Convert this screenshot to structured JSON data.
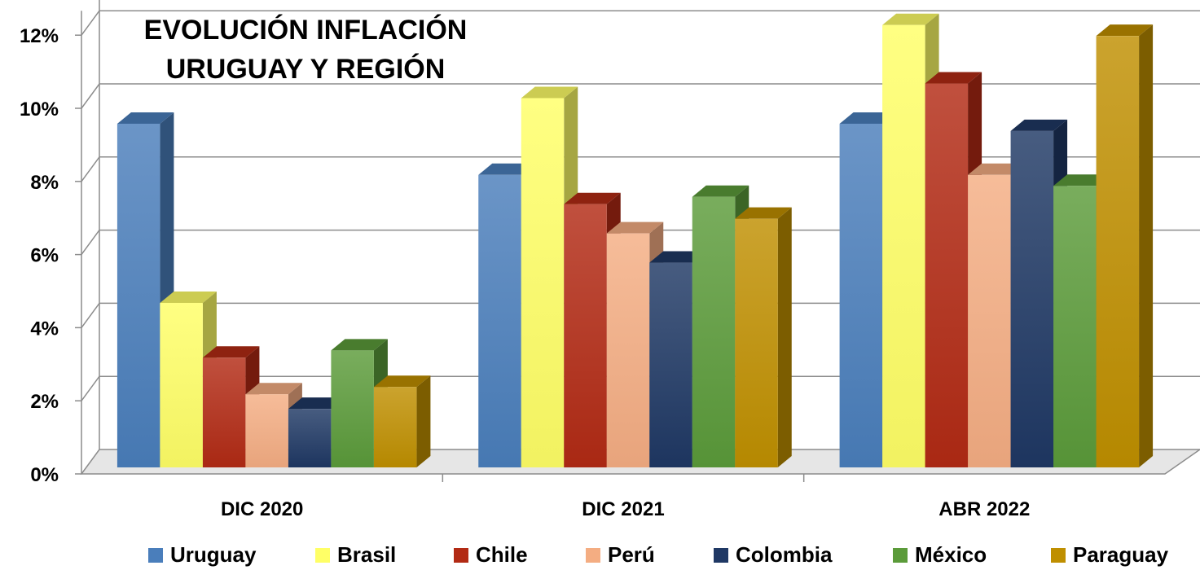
{
  "chart_data": {
    "type": "bar",
    "title_lines": [
      "EVOLUCIÓN INFLACIÓN",
      "URUGUAY Y REGIÓN"
    ],
    "categories": [
      "DIC 2020",
      "DIC 2021",
      "ABR 2022"
    ],
    "series": [
      {
        "name": "Uruguay",
        "color": "#4a7ebb",
        "values": [
          9.4,
          8.0,
          9.4
        ]
      },
      {
        "name": "Brasil",
        "color": "#ffff66",
        "values": [
          4.5,
          10.1,
          12.1
        ]
      },
      {
        "name": "Chile",
        "color": "#b22a14",
        "values": [
          3.0,
          7.2,
          10.5
        ]
      },
      {
        "name": "Perú",
        "color": "#f4ad82",
        "values": [
          2.0,
          6.4,
          8.0
        ]
      },
      {
        "name": "Colombia",
        "color": "#1f3864",
        "values": [
          1.6,
          5.6,
          9.2
        ]
      },
      {
        "name": "México",
        "color": "#5b9b3a",
        "values": [
          3.2,
          7.4,
          7.7
        ]
      },
      {
        "name": "Paraguay",
        "color": "#bf8f00",
        "values": [
          2.2,
          6.8,
          11.8
        ]
      }
    ],
    "y_ticks": [
      "0%",
      "2%",
      "4%",
      "6%",
      "8%",
      "10%",
      "12%"
    ],
    "ylim": [
      0,
      12
    ],
    "grid": true,
    "legend_position": "bottom"
  }
}
